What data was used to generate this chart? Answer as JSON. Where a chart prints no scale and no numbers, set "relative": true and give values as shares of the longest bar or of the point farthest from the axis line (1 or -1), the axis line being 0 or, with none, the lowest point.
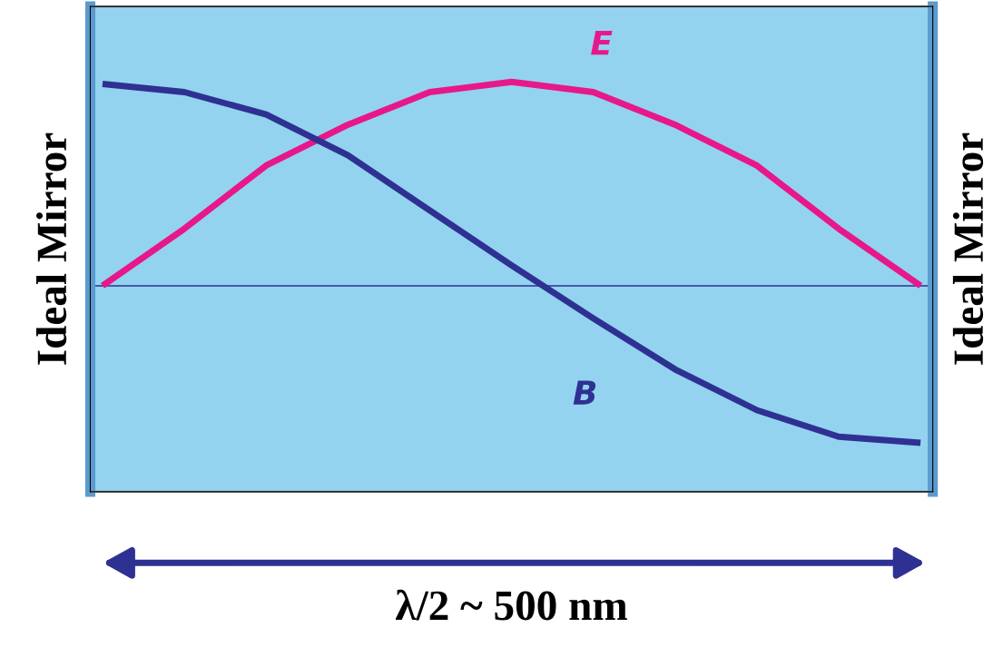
{
  "chart_data": {
    "type": "line",
    "relative": true,
    "xlabel": "λ/2 ~ 500 nm",
    "ylabel": "Ideal Mirror",
    "y2label": "Ideal Mirror",
    "categories": [
      null,
      null,
      null,
      null,
      null,
      null,
      null,
      null,
      null,
      null,
      null
    ],
    "series": [
      {
        "name": "E",
        "color": "#e8178a",
        "values": [
          0,
          0.28,
          0.59,
          0.79,
          0.95,
          1.0,
          0.95,
          0.79,
          0.59,
          0.28,
          0
        ]
      },
      {
        "name": "B",
        "color": "#2e3192",
        "values": [
          0.99,
          0.95,
          0.84,
          0.64,
          0.37,
          0.1,
          -0.16,
          -0.41,
          -0.61,
          -0.74,
          -0.77
        ]
      }
    ],
    "ref_lines": [
      {
        "axis": "y",
        "value": 0,
        "color": "#2e3192"
      }
    ],
    "tick_labels": false,
    "marker": "none",
    "line_style": "solid"
  }
}
